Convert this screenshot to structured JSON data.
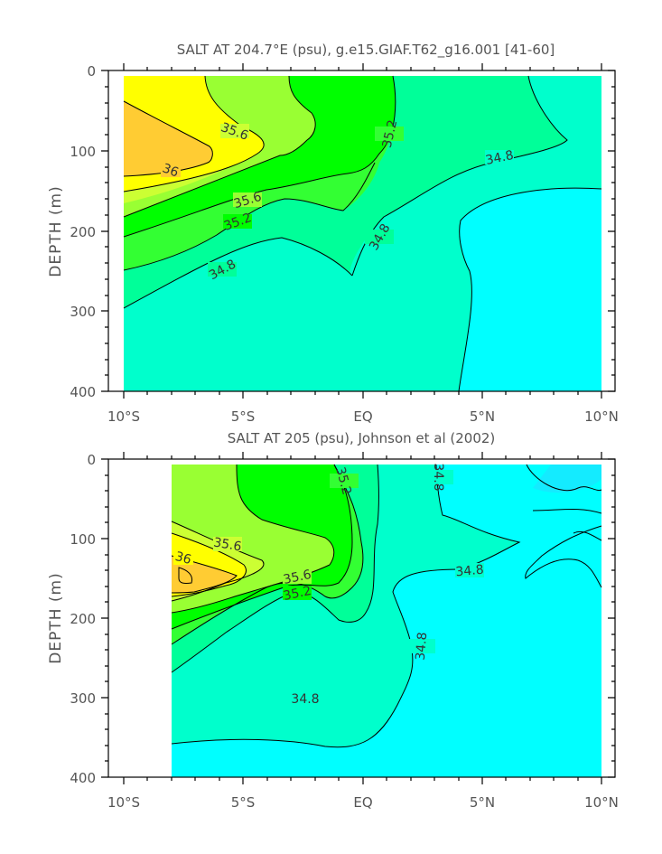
{
  "figure": {
    "background": "#ffffff"
  },
  "colors": {
    "lt_34.4": "#00ffff",
    "34.4_34.8": "#00ffcc",
    "34.8_35.0": "#00ff99",
    "35.0_35.2": "#33ff33",
    "35.2_35.4": "#00ff00",
    "35.4_35.6": "#99ff33",
    "35.6_35.8": "#ccff33",
    "35.8_36.0": "#ffff00",
    "gt_36.0": "#ffcc33",
    "contour_line": "#000000",
    "axis": "#000000",
    "text": "#555555"
  },
  "chart_data": [
    {
      "type": "heatmap",
      "title": "SALT AT 204.7°E (psu), g.e15.GIAF.T62_g16.001 [41-60]",
      "ylabel": "DEPTH (m)",
      "xlabel": "",
      "x_ticks": [
        "10°S",
        "5°S",
        "EQ",
        "5°N",
        "10°N"
      ],
      "y_ticks": [
        "0",
        "100",
        "200",
        "300",
        "400"
      ],
      "xlim": [
        -10,
        10
      ],
      "ylim": [
        400,
        0
      ],
      "units": "psu",
      "contour_labels": [
        {
          "text": "35.6",
          "lat": -6.7,
          "depth": 88
        },
        {
          "text": "36",
          "lat": -8.5,
          "depth": 127
        },
        {
          "text": "35.6",
          "lat": -5.2,
          "depth": 165
        },
        {
          "text": "35.2",
          "lat": -5.7,
          "depth": 192
        },
        {
          "text": "34.8",
          "lat": -6.9,
          "depth": 252
        },
        {
          "text": "35.2",
          "lat": -0.9,
          "depth": 90
        },
        {
          "text": "34.8",
          "lat": 1.2,
          "depth": 213
        },
        {
          "text": "34.8",
          "lat": 4.4,
          "depth": 115
        }
      ]
    },
    {
      "type": "heatmap",
      "title": "SALT AT 205 (psu), Johnson et al (2002)",
      "ylabel": "DEPTH (m)",
      "xlabel": "",
      "x_ticks": [
        "10°S",
        "5°S",
        "EQ",
        "5°N",
        "10°N"
      ],
      "y_ticks": [
        "0",
        "100",
        "200",
        "300",
        "400"
      ],
      "xlim": [
        -10,
        10
      ],
      "ylim": [
        400,
        0
      ],
      "units": "psu",
      "contour_labels": [
        {
          "text": "35.2",
          "lat": -1.6,
          "depth": 40
        },
        {
          "text": "34.8",
          "lat": 3.3,
          "depth": 38
        },
        {
          "text": "35.6",
          "lat": -6.4,
          "depth": 108
        },
        {
          "text": "36",
          "lat": -8.1,
          "depth": 122
        },
        {
          "text": "35.6",
          "lat": -3.5,
          "depth": 148
        },
        {
          "text": "35.2",
          "lat": -3.5,
          "depth": 168
        },
        {
          "text": "34.8",
          "lat": 4.0,
          "depth": 122
        },
        {
          "text": "34.8",
          "lat": 2.2,
          "depth": 260
        },
        {
          "text": "34.8",
          "lat": -3.3,
          "depth": 299
        }
      ]
    }
  ]
}
